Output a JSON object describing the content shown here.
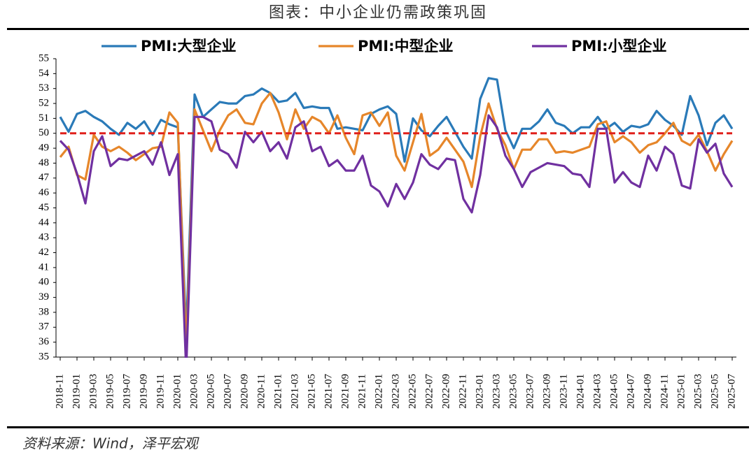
{
  "chart_data": {
    "type": "line",
    "title": "图表：中小企业仍需政策巩固",
    "source": "资料来源：Wind，泽平宏观",
    "categories": [
      "2018-11",
      null,
      "2019-01",
      null,
      "2019-03",
      null,
      "2019-05",
      null,
      "2019-07",
      null,
      "2019-09",
      null,
      "2019-11",
      null,
      "2020-01",
      null,
      "2020-03",
      null,
      "2020-05",
      null,
      "2020-07",
      null,
      "2020-09",
      null,
      "2020-11",
      null,
      "2021-01",
      null,
      "2021-03",
      null,
      "2021-05",
      null,
      "2021-07",
      null,
      "2021-09",
      null,
      "2021-11",
      null,
      "2022-01",
      null,
      "2022-03",
      null,
      "2022-05",
      null,
      "2022-07",
      null,
      "2022-09",
      null,
      "2022-11",
      null,
      "2023-01",
      null,
      "2023-03",
      null,
      "2023-05",
      null,
      "2023-07",
      null,
      "2023-09",
      null,
      "2023-11",
      null,
      "2024-01",
      null,
      "2024-03",
      null,
      "2024-05",
      null,
      "2024-07",
      null,
      "2024-09",
      null,
      "2024-11",
      null,
      "2025-01",
      null,
      "2025-03",
      null,
      "2025-05",
      null,
      "2025-07"
    ],
    "series": [
      {
        "name": "PMI:大型企业",
        "color": "#2a7ab8",
        "values": [
          51.1,
          50.1,
          51.3,
          51.5,
          51.1,
          50.8,
          50.3,
          49.9,
          50.7,
          50.3,
          50.8,
          49.9,
          50.9,
          50.6,
          50.4,
          36.6,
          52.6,
          51.1,
          51.6,
          52.1,
          52.0,
          52.0,
          52.5,
          52.6,
          53.0,
          52.7,
          52.1,
          52.2,
          52.7,
          51.7,
          51.8,
          51.7,
          51.7,
          50.3,
          50.4,
          50.3,
          50.2,
          51.3,
          51.6,
          51.8,
          51.3,
          48.1,
          51.0,
          50.2,
          49.8,
          50.5,
          51.1,
          50.1,
          49.1,
          48.3,
          52.3,
          53.7,
          53.6,
          50.2,
          49.0,
          50.3,
          50.3,
          50.8,
          51.6,
          50.7,
          50.5,
          50.0,
          50.4,
          50.4,
          51.1,
          50.3,
          50.7,
          50.1,
          50.5,
          50.4,
          50.6,
          51.5,
          50.9,
          50.5,
          49.9,
          52.5,
          51.2,
          49.2,
          50.7,
          51.2,
          50.3
        ]
      },
      {
        "name": "PMI:中型企业",
        "color": "#e6862a",
        "values": [
          48.4,
          49.1,
          47.2,
          46.9,
          49.9,
          49.1,
          48.8,
          49.1,
          48.7,
          48.2,
          48.6,
          49.0,
          49.1,
          51.4,
          50.7,
          35.5,
          51.6,
          50.2,
          48.8,
          50.2,
          51.2,
          51.6,
          50.7,
          50.6,
          52.0,
          52.7,
          51.4,
          49.6,
          51.6,
          50.3,
          51.1,
          50.8,
          50.0,
          51.2,
          49.7,
          48.6,
          51.2,
          51.4,
          50.5,
          51.4,
          48.5,
          47.5,
          49.4,
          51.3,
          48.5,
          48.9,
          49.7,
          48.9,
          48.1,
          46.4,
          49.8,
          52.0,
          50.3,
          49.2,
          47.6,
          48.9,
          48.9,
          49.6,
          49.6,
          48.7,
          48.8,
          48.7,
          48.9,
          49.1,
          50.6,
          50.8,
          49.4,
          49.8,
          49.4,
          48.7,
          49.2,
          49.4,
          50.0,
          50.7,
          49.5,
          49.2,
          49.9,
          48.8,
          47.5,
          48.6,
          49.5
        ]
      },
      {
        "name": "PMI:小型企业",
        "color": "#7030a0",
        "values": [
          49.5,
          48.9,
          47.3,
          45.3,
          48.8,
          49.8,
          47.8,
          48.3,
          48.2,
          48.5,
          48.8,
          47.9,
          49.4,
          47.2,
          48.6,
          34.1,
          51.1,
          51.1,
          50.8,
          48.9,
          48.6,
          47.7,
          50.1,
          49.4,
          50.1,
          48.8,
          49.4,
          48.3,
          50.4,
          50.8,
          48.8,
          49.1,
          47.8,
          48.2,
          47.5,
          47.5,
          48.5,
          46.5,
          46.1,
          45.1,
          46.6,
          45.6,
          46.7,
          48.6,
          47.9,
          47.6,
          48.3,
          48.2,
          45.6,
          44.7,
          47.2,
          51.2,
          50.4,
          48.5,
          47.6,
          46.4,
          47.4,
          47.7,
          48.0,
          47.9,
          47.8,
          47.3,
          47.2,
          46.4,
          50.3,
          50.3,
          46.7,
          47.4,
          46.7,
          46.4,
          48.5,
          47.5,
          49.1,
          48.6,
          46.5,
          46.3,
          49.6,
          48.7,
          49.3,
          47.3,
          46.4
        ]
      }
    ],
    "reference_line": {
      "value": 50,
      "color": "#e0201b"
    },
    "ylim": [
      35,
      55
    ],
    "yticks": [
      35,
      36,
      37,
      38,
      39,
      40,
      41,
      42,
      43,
      44,
      45,
      46,
      47,
      48,
      49,
      50,
      51,
      52,
      53,
      54,
      55
    ],
    "grid": false
  }
}
